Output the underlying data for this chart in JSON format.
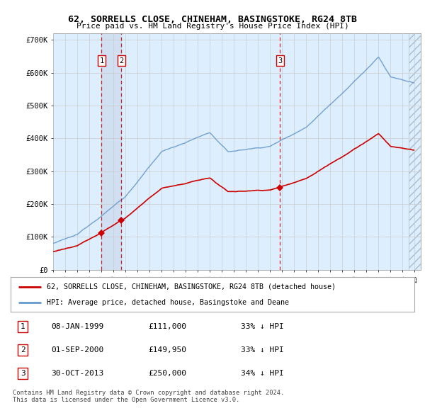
{
  "title": "62, SORRELLS CLOSE, CHINEHAM, BASINGSTOKE, RG24 8TB",
  "subtitle": "Price paid vs. HM Land Registry's House Price Index (HPI)",
  "ylim": [
    0,
    720000
  ],
  "yticks": [
    0,
    100000,
    200000,
    300000,
    400000,
    500000,
    600000,
    700000
  ],
  "ytick_labels": [
    "£0",
    "£100K",
    "£200K",
    "£300K",
    "£400K",
    "£500K",
    "£600K",
    "£700K"
  ],
  "sale_prices": [
    111000,
    149950,
    250000
  ],
  "sale_labels": [
    "1",
    "2",
    "3"
  ],
  "legend_property": "62, SORRELLS CLOSE, CHINEHAM, BASINGSTOKE, RG24 8TB (detached house)",
  "legend_hpi": "HPI: Average price, detached house, Basingstoke and Deane",
  "table_entries": [
    {
      "num": "1",
      "date": "08-JAN-1999",
      "price": "£111,000",
      "hpi": "33% ↓ HPI"
    },
    {
      "num": "2",
      "date": "01-SEP-2000",
      "price": "£149,950",
      "hpi": "33% ↓ HPI"
    },
    {
      "num": "3",
      "date": "30-OCT-2013",
      "price": "£250,000",
      "hpi": "34% ↓ HPI"
    }
  ],
  "footer": "Contains HM Land Registry data © Crown copyright and database right 2024.\nThis data is licensed under the Open Government Licence v3.0.",
  "property_line_color": "#cc0000",
  "hpi_line_color": "#6699cc",
  "vline_color": "#cc0000",
  "background_color": "#ddeeff",
  "shade_color": "#bbccee",
  "grid_color": "#cccccc",
  "box_border_color": "#cc0000"
}
